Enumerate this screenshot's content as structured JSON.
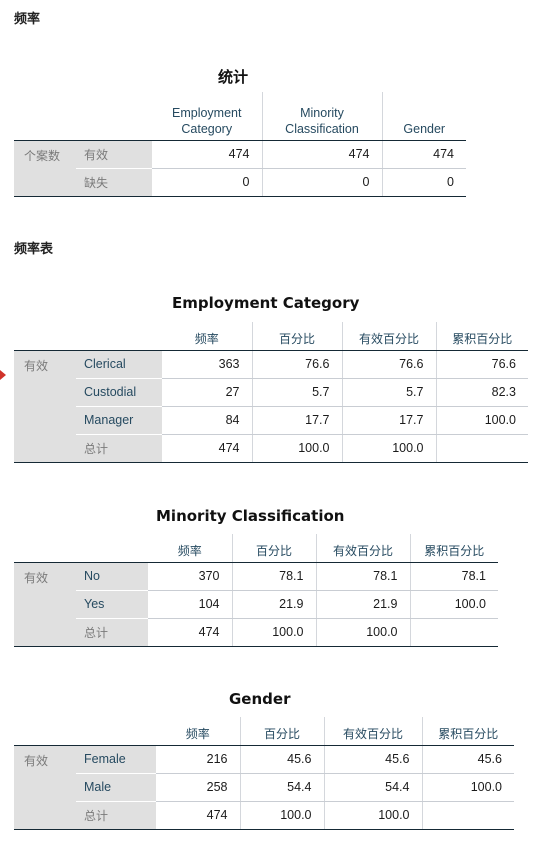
{
  "headings": {
    "main": "频率",
    "freq_tables": "频率表"
  },
  "stats": {
    "title": "统计",
    "columns": [
      "Employment Category",
      "Minority Classification",
      "Gender"
    ],
    "column_lines": [
      [
        "Employment",
        "Category"
      ],
      [
        "Minority",
        "Classification"
      ],
      [
        "Gender",
        ""
      ]
    ],
    "group": "个案数",
    "rows": [
      {
        "label": "有效",
        "values": [
          "474",
          "474",
          "474"
        ]
      },
      {
        "label": "缺失",
        "values": [
          "0",
          "0",
          "0"
        ]
      }
    ]
  },
  "freq_headers": [
    "频率",
    "百分比",
    "有效百分比",
    "累积百分比"
  ],
  "freq_tables": [
    {
      "title": "Employment Category",
      "group": "有效",
      "rows": [
        {
          "label": "Clerical",
          "values": [
            "363",
            "76.6",
            "76.6",
            "76.6"
          ]
        },
        {
          "label": "Custodial",
          "values": [
            "27",
            "5.7",
            "5.7",
            "82.3"
          ]
        },
        {
          "label": "Manager",
          "values": [
            "84",
            "17.7",
            "17.7",
            "100.0"
          ]
        },
        {
          "label": "总计",
          "values": [
            "474",
            "100.0",
            "100.0",
            ""
          ]
        }
      ]
    },
    {
      "title": "Minority Classification",
      "group": "有效",
      "rows": [
        {
          "label": "No",
          "values": [
            "370",
            "78.1",
            "78.1",
            "78.1"
          ]
        },
        {
          "label": "Yes",
          "values": [
            "104",
            "21.9",
            "21.9",
            "100.0"
          ]
        },
        {
          "label": "总计",
          "values": [
            "474",
            "100.0",
            "100.0",
            ""
          ]
        }
      ]
    },
    {
      "title": "Gender",
      "group": "有效",
      "rows": [
        {
          "label": "Female",
          "values": [
            "216",
            "45.6",
            "45.6",
            "45.6"
          ]
        },
        {
          "label": "Male",
          "values": [
            "258",
            "54.4",
            "54.4",
            "100.0"
          ]
        },
        {
          "label": "总计",
          "values": [
            "474",
            "100.0",
            "100.0",
            ""
          ]
        }
      ]
    }
  ],
  "colors": {
    "header_text": "#264a60",
    "label_bg": "#e0e0e0",
    "rule": "#152935",
    "marker": "#d0322a"
  }
}
